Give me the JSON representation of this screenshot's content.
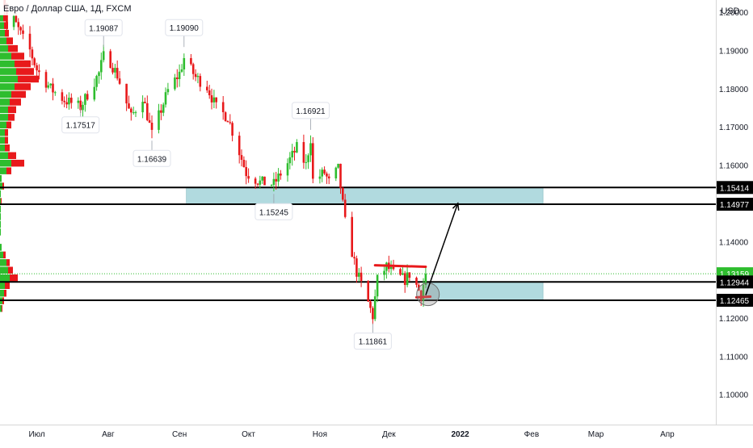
{
  "header": {
    "symbol_title": "Евро / Доллар США, 1Д, FXCM"
  },
  "price_axis": {
    "currency": "USD",
    "ticks": [
      "1.20000",
      "1.19000",
      "1.18000",
      "1.17000",
      "1.16000",
      "1.14000",
      "1.13000",
      "1.12000",
      "1.11000",
      "1.10000"
    ],
    "highlighted_labels": [
      {
        "text": "1.15414",
        "value": 1.15414
      },
      {
        "text": "1.14977",
        "value": 1.14977
      },
      {
        "text": "1.13159",
        "value": 1.13159
      },
      {
        "text": "1.12944",
        "value": 1.12944
      },
      {
        "text": "1.12465",
        "value": 1.12465
      }
    ]
  },
  "time_axis": {
    "labels": [
      "Июл",
      "Авг",
      "Сен",
      "Окт",
      "Ноя",
      "Дек",
      "2022",
      "Фев",
      "Мар",
      "Апр"
    ]
  },
  "colors": {
    "up": "#2ebd2e",
    "down": "#e8191b",
    "zone": "#a9d6dc",
    "level": "#000000",
    "current": "#2ebd2e",
    "annotation": "#e8191b"
  },
  "chart_data": {
    "type": "candlestick",
    "title": "Евро / Доллар США, 1Д, FXCM",
    "xlabel": "",
    "ylabel": "",
    "ylim": [
      1.0955,
      1.2015
    ],
    "x_range": [
      "2021-06-15",
      "2022-04-20"
    ],
    "close_path": [
      [
        "2021-06-15",
        1.2125
      ],
      [
        "2021-06-18",
        1.196
      ],
      [
        "2021-06-21",
        1.198
      ],
      [
        "2021-06-25",
        1.193
      ],
      [
        "2021-06-28",
        1.19
      ],
      [
        "2021-07-01",
        1.185
      ],
      [
        "2021-07-07",
        1.18
      ],
      [
        "2021-07-13",
        1.177
      ],
      [
        "2021-07-20",
        1.1752
      ],
      [
        "2021-07-23",
        1.1785
      ],
      [
        "2021-07-28",
        1.184
      ],
      [
        "2021-07-30",
        1.1885
      ],
      [
        "2021-08-02",
        1.187
      ],
      [
        "2021-08-05",
        1.1835
      ],
      [
        "2021-08-11",
        1.1725
      ],
      [
        "2021-08-16",
        1.178
      ],
      [
        "2021-08-20",
        1.168
      ],
      [
        "2021-08-24",
        1.1745
      ],
      [
        "2021-08-27",
        1.1795
      ],
      [
        "2021-09-01",
        1.184
      ],
      [
        "2021-09-03",
        1.188
      ],
      [
        "2021-09-08",
        1.183
      ],
      [
        "2021-09-13",
        1.1805
      ],
      [
        "2021-09-17",
        1.175
      ],
      [
        "2021-09-22",
        1.1725
      ],
      [
        "2021-09-30",
        1.158
      ],
      [
        "2021-10-06",
        1.1555
      ],
      [
        "2021-10-12",
        1.155
      ],
      [
        "2021-10-18",
        1.1605
      ],
      [
        "2021-10-22",
        1.1645
      ],
      [
        "2021-10-26",
        1.16
      ],
      [
        "2021-10-28",
        1.167
      ],
      [
        "2021-10-29",
        1.156
      ],
      [
        "2021-11-03",
        1.158
      ],
      [
        "2021-11-05",
        1.1555
      ],
      [
        "2021-11-09",
        1.159
      ],
      [
        "2021-11-12",
        1.145
      ],
      [
        "2021-11-17",
        1.132
      ],
      [
        "2021-11-22",
        1.124
      ],
      [
        "2021-11-24",
        1.1205
      ],
      [
        "2021-11-26",
        1.13
      ],
      [
        "2021-11-30",
        1.1335
      ],
      [
        "2021-12-03",
        1.1315
      ],
      [
        "2021-12-08",
        1.13
      ],
      [
        "2021-12-10",
        1.1315
      ],
      [
        "2021-12-13",
        1.1285
      ],
      [
        "2021-12-15",
        1.126
      ],
      [
        "2021-12-17",
        1.1315
      ]
    ],
    "extreme_labels": [
      {
        "text": "1.19087",
        "date": "2021-07-30",
        "value": 1.19087,
        "position": "above"
      },
      {
        "text": "1.19090",
        "date": "2021-09-03",
        "value": 1.1909,
        "position": "above"
      },
      {
        "text": "1.17517",
        "date": "2021-07-20",
        "value": 1.17517,
        "position": "below"
      },
      {
        "text": "1.16639",
        "date": "2021-08-20",
        "value": 1.16639,
        "position": "below"
      },
      {
        "text": "1.16921",
        "date": "2021-10-28",
        "value": 1.16921,
        "position": "above"
      },
      {
        "text": "1.15245",
        "date": "2021-10-12",
        "value": 1.15245,
        "position": "below"
      },
      {
        "text": "1.11861",
        "date": "2021-11-24",
        "value": 1.11861,
        "position": "below"
      }
    ],
    "horizontal_levels": [
      1.15414,
      1.14977,
      1.12944,
      1.12465
    ],
    "current_price": 1.13159,
    "zones": [
      {
        "from": "2021-09-04",
        "to": "2022-02-06",
        "top": 1.15414,
        "bottom": 1.14977
      },
      {
        "from": "2021-12-17",
        "to": "2022-02-06",
        "top": 1.12944,
        "bottom": 1.12465
      }
    ],
    "range_lines": [
      {
        "from": "2021-11-25",
        "to": "2021-12-17",
        "y1": 1.1338,
        "y2": 1.1334
      },
      {
        "from": "2021-12-13",
        "to": "2021-12-19",
        "y1": 1.1254,
        "y2": 1.1256
      }
    ],
    "projection": {
      "from_date": "2021-12-17",
      "from_value": 1.126,
      "to_date": "2021-12-31",
      "to_value": 1.15
    },
    "highlight_circle": {
      "date": "2021-12-18",
      "value": 1.1262
    },
    "volume_profile": {
      "price_levels": [
        1.1985,
        1.1965,
        1.1945,
        1.1925,
        1.1905,
        1.1885,
        1.1865,
        1.1845,
        1.1825,
        1.1805,
        1.1785,
        1.1765,
        1.1745,
        1.1725,
        1.1705,
        1.1685,
        1.1665,
        1.1645,
        1.1625,
        1.1605,
        1.1585,
        1.1565,
        1.1545,
        1.1525,
        1.1505,
        1.1485,
        1.1465,
        1.1445,
        1.1425,
        1.1405,
        1.1385,
        1.1365,
        1.1345,
        1.1325,
        1.1305,
        1.1285,
        1.1265,
        1.1245,
        1.1225
      ],
      "up": [
        4,
        5,
        6,
        8,
        10,
        14,
        18,
        20,
        22,
        18,
        14,
        12,
        10,
        10,
        8,
        6,
        6,
        6,
        10,
        14,
        8,
        2,
        3,
        1,
        1,
        1,
        1,
        1,
        1,
        0,
        2,
        4,
        8,
        10,
        12,
        6,
        5,
        3,
        2
      ],
      "down": [
        4,
        5,
        5,
        8,
        12,
        16,
        20,
        22,
        26,
        20,
        18,
        14,
        10,
        8,
        6,
        4,
        4,
        6,
        10,
        16,
        6,
        0,
        2,
        0,
        1,
        0,
        0,
        0,
        0,
        0,
        0,
        3,
        4,
        6,
        10,
        6,
        3,
        2,
        1
      ]
    }
  }
}
